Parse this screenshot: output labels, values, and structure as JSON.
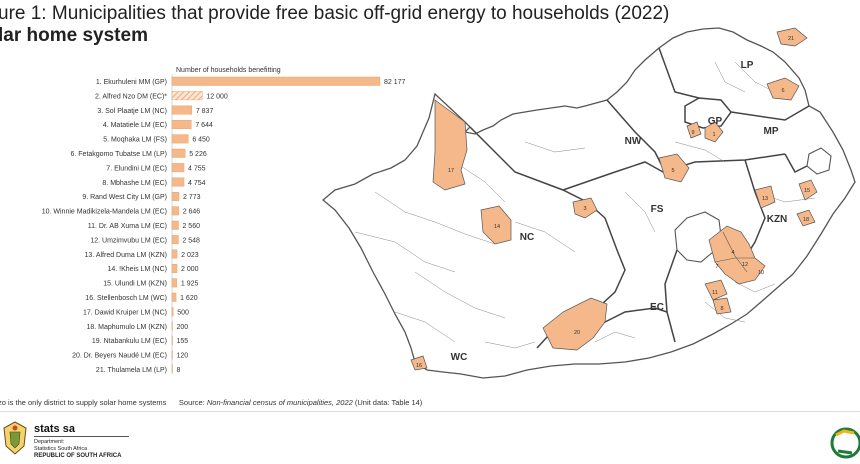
{
  "title": "ure 1: Municipalities that provide free basic off-grid energy to households (2022)",
  "subtitle": "lar home system",
  "chart_data": {
    "type": "bar",
    "orientation": "horizontal",
    "column_header": "Number of households benefitting",
    "categories": [
      "1. Ekurhuleni MM (GP)",
      "2. Alfred Nzo DM (EC)*",
      "3. Sol Plaatje LM (NC)",
      "4. Matatiele LM (EC)",
      "5. Moqhaka LM (FS)",
      "6. Fetakgomo Tubatse LM (LP)",
      "7. Elundini LM (EC)",
      "8. Mbhashe LM (EC)",
      "9. Rand West City LM (GP)",
      "10. Winnie Madikizela-Mandela LM (EC)",
      "11. Dr. AB Xuma LM (EC)",
      "12. Umzimvubu LM (EC)",
      "13. Alfred Duma LM (KZN)",
      "14. !Kheis LM (NC)",
      "15. Ulundi LM (KZN)",
      "16. Stellenbosch LM (WC)",
      "17. Dawid Kruiper LM (NC)",
      "18. Maphumulo LM (KZN)",
      "19. Ntabankulu LM (EC)",
      "20. Dr. Beyers Naudé LM (EC)",
      "21. Thulamela LM (LP)"
    ],
    "values": [
      82177,
      12000,
      7837,
      7644,
      6450,
      5226,
      4755,
      4754,
      2773,
      2646,
      2560,
      2548,
      2023,
      2000,
      1925,
      1620,
      500,
      200,
      155,
      120,
      8
    ],
    "value_labels": [
      "82 177",
      "12 000",
      "7 837",
      "7 644",
      "6 450",
      "5 226",
      "4 755",
      "4 754",
      "2 773",
      "2 646",
      "2 560",
      "2 548",
      "2 023",
      "2 000",
      "1 925",
      "1 620",
      "500",
      "200",
      "155",
      "120",
      "8"
    ],
    "hatched_index": 1,
    "xlim": [
      0,
      82177
    ],
    "colors": {
      "bar": "#f5b88a",
      "bar_edge": "#e89c62"
    }
  },
  "map": {
    "province_labels": [
      "LP",
      "GP",
      "MP",
      "NW",
      "FS",
      "KZN",
      "NC",
      "EC",
      "WC"
    ],
    "municipality_markers": [
      "21",
      "6",
      "9",
      "1",
      "5",
      "17",
      "3",
      "14",
      "13",
      "15",
      "18",
      "7",
      "4",
      "12",
      "10",
      "11",
      "8",
      "20",
      "16"
    ],
    "colors": {
      "highlight": "#f5b88a",
      "border": "#555555",
      "land": "#ffffff"
    }
  },
  "footnote": {
    "note": "zo is the only district to supply solar home systems",
    "source_label": "Source:",
    "source_text": "Non-financial census of municipalities, 2022",
    "unit_data": "(Unit data: Table 14)"
  },
  "branding": {
    "agency": "stats sa",
    "department_line1": "Department:",
    "department_line2": "Statistics South Africa",
    "department_line3": "REPUBLIC OF SOUTH AFRICA"
  }
}
